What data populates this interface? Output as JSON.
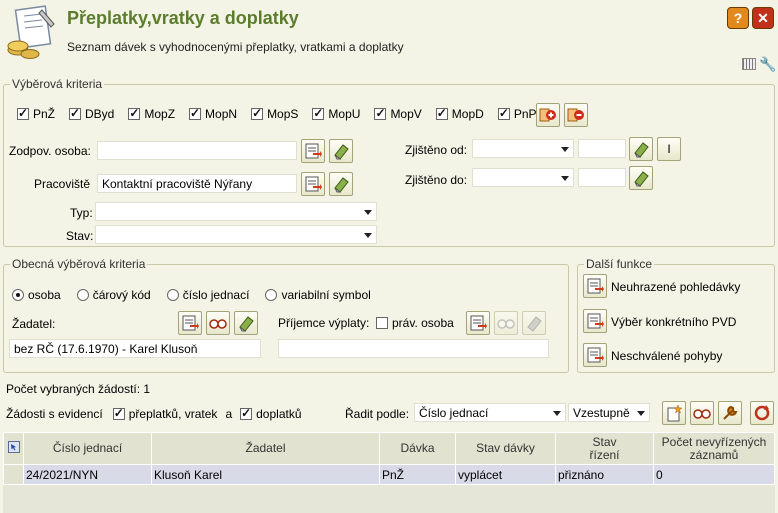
{
  "header": {
    "title": "Přeplatky,vratky a doplatky",
    "subtitle": "Seznam dávek s vyhodnocenými přeplatky, vratkami a doplatky",
    "help_icon": "help-icon",
    "close_icon": "close-icon"
  },
  "criteria": {
    "legend": "Výběrová kriteria",
    "checkboxes": [
      {
        "label": "PnŽ",
        "checked": true
      },
      {
        "label": "DByd",
        "checked": true
      },
      {
        "label": "MopZ",
        "checked": true
      },
      {
        "label": "MopN",
        "checked": true
      },
      {
        "label": "MopS",
        "checked": true
      },
      {
        "label": "MopU",
        "checked": true
      },
      {
        "label": "MopV",
        "checked": true
      },
      {
        "label": "MopD",
        "checked": true
      },
      {
        "label": "PnP",
        "checked": true
      }
    ],
    "zodpov_label": "Zodpov. osoba:",
    "zodpov_value": "",
    "pracoviste_label": "Pracoviště",
    "pracoviste_value": "Kontaktní pracoviště Nýřany",
    "typ_label": "Typ:",
    "typ_value": "",
    "stav_label": "Stav:",
    "stav_value": "",
    "zjisteno_od_label": "Zjištěno od:",
    "zjisteno_do_label": "Zjištěno do:",
    "interval_button": "I"
  },
  "general": {
    "legend": "Obecná výběrová kriteria",
    "radios": [
      {
        "label": "osoba",
        "checked": true
      },
      {
        "label": "čárový kód",
        "checked": false
      },
      {
        "label": "číslo jednací",
        "checked": false
      },
      {
        "label": "variabilní symbol",
        "checked": false
      }
    ],
    "zadatel_label": "Žadatel:",
    "zadatel_value": "bez RČ (17.6.1970) - Karel Klusoň",
    "prijemce_label": "Příjemce výplaty:",
    "prav_osoba_label": "práv. osoba",
    "prijemce_value": ""
  },
  "functions": {
    "legend": "Další funkce",
    "items": [
      "Neuhrazené pohledávky",
      "Výběr konkrétního PVD",
      "Neschválené pohyby"
    ]
  },
  "summary": {
    "count_label": "Počet vybraných žádostí: 1",
    "evidence_label": "Žádosti s evidencí",
    "preplatky_label": "přeplatků, vratek",
    "a_label": "a",
    "doplatky_label": "doplatků",
    "sort_label": "Řadit podle:",
    "sort_value": "Číslo jednací",
    "order_value": "Vzestupně"
  },
  "table": {
    "headers": [
      "Číslo jednací",
      "Žadatel",
      "Dávka",
      "Stav dávky",
      "Stav řízení",
      "Počet nevyřízených záznamů"
    ],
    "rows": [
      [
        "24/2021/NYN",
        "Klusoň Karel",
        "PnŽ",
        "vyplácet",
        "přiznáno",
        "0"
      ]
    ]
  },
  "colors": {
    "title": "#5b7d2d",
    "background": "#f3f3e6",
    "row_selected": "#d9dae8"
  }
}
